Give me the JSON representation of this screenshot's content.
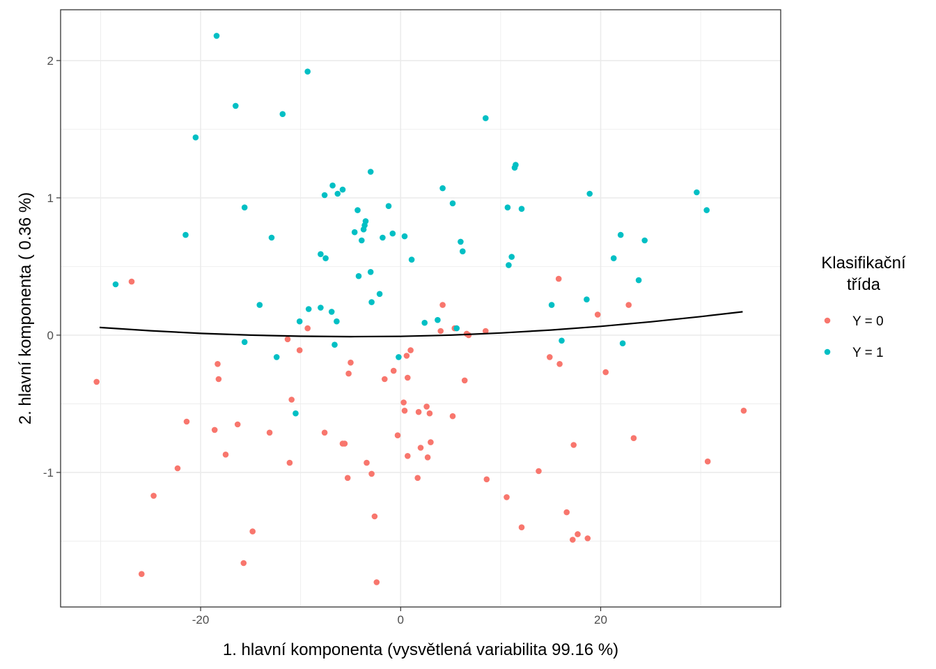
{
  "chart_data": {
    "type": "scatter",
    "title": "",
    "xlabel": "1. hlavní komponenta (vysvětlená variabilita 99.16 %)",
    "ylabel": "2. hlavní komponenta ( 0.36 %)",
    "xlim": [
      -34,
      38
    ],
    "ylim": [
      -1.98,
      2.37
    ],
    "x_ticks": [
      -20,
      0,
      20
    ],
    "x_tick_labels": [
      "-20",
      "0",
      "20"
    ],
    "y_ticks": [
      -1,
      0,
      1,
      2
    ],
    "y_tick_labels": [
      "-1",
      "0",
      "1",
      "2"
    ],
    "grid": true,
    "legend": {
      "title_lines": [
        "Klasifikační",
        "třída"
      ],
      "placement": "right",
      "entries": [
        {
          "label": "Y = 0",
          "color": "#F8766D"
        },
        {
          "label": "Y = 1",
          "color": "#00BFC4"
        }
      ]
    },
    "series": [
      {
        "name": "Y = 0",
        "color": "#F8766D",
        "points": [
          [
            -30.4,
            -0.34
          ],
          [
            -26.9,
            0.39
          ],
          [
            -25.9,
            -1.74
          ],
          [
            -24.7,
            -1.17
          ],
          [
            -22.3,
            -0.97
          ],
          [
            -21.4,
            -0.63
          ],
          [
            -18.6,
            -0.69
          ],
          [
            -18.3,
            -0.21
          ],
          [
            -18.2,
            -0.32
          ],
          [
            -17.5,
            -0.87
          ],
          [
            -16.3,
            -0.65
          ],
          [
            -15.7,
            -1.66
          ],
          [
            -14.8,
            -1.43
          ],
          [
            -13.1,
            -0.71
          ],
          [
            -11.3,
            -0.03
          ],
          [
            -11.1,
            -0.93
          ],
          [
            -10.9,
            -0.47
          ],
          [
            -10.1,
            -0.11
          ],
          [
            -9.3,
            0.05
          ],
          [
            -7.6,
            -0.71
          ],
          [
            -5.8,
            -0.79
          ],
          [
            -5.6,
            -0.79
          ],
          [
            -5.3,
            -1.04
          ],
          [
            -5.2,
            -0.28
          ],
          [
            -5.0,
            -0.2
          ],
          [
            -3.4,
            -0.93
          ],
          [
            -2.9,
            -1.01
          ],
          [
            -2.6,
            -1.32
          ],
          [
            -2.4,
            -1.8
          ],
          [
            -1.6,
            -0.32
          ],
          [
            -0.7,
            -0.26
          ],
          [
            -0.3,
            -0.73
          ],
          [
            0.3,
            -0.49
          ],
          [
            0.4,
            -0.55
          ],
          [
            0.6,
            -0.15
          ],
          [
            0.7,
            -0.31
          ],
          [
            0.7,
            -0.88
          ],
          [
            1.0,
            -0.11
          ],
          [
            1.7,
            -1.04
          ],
          [
            1.8,
            -0.56
          ],
          [
            2.0,
            -0.82
          ],
          [
            2.6,
            -0.52
          ],
          [
            2.7,
            -0.89
          ],
          [
            2.9,
            -0.57
          ],
          [
            3.0,
            -0.78
          ],
          [
            4.0,
            0.03
          ],
          [
            4.2,
            0.22
          ],
          [
            5.2,
            -0.59
          ],
          [
            5.4,
            0.05
          ],
          [
            6.4,
            -0.33
          ],
          [
            6.6,
            0.01
          ],
          [
            6.8,
            0.0
          ],
          [
            8.5,
            0.03
          ],
          [
            8.6,
            -1.05
          ],
          [
            10.6,
            -1.18
          ],
          [
            12.1,
            -1.4
          ],
          [
            13.8,
            -0.99
          ],
          [
            14.9,
            -0.16
          ],
          [
            15.8,
            0.41
          ],
          [
            15.9,
            -0.21
          ],
          [
            16.6,
            -1.29
          ],
          [
            17.2,
            -1.49
          ],
          [
            17.3,
            -0.8
          ],
          [
            17.7,
            -1.45
          ],
          [
            18.7,
            -1.48
          ],
          [
            19.7,
            0.15
          ],
          [
            20.5,
            -0.27
          ],
          [
            22.8,
            0.22
          ],
          [
            23.3,
            -0.75
          ],
          [
            30.7,
            -0.92
          ],
          [
            34.3,
            -0.55
          ]
        ]
      },
      {
        "name": "Y = 1",
        "color": "#00BFC4",
        "points": [
          [
            -28.5,
            0.37
          ],
          [
            -21.5,
            0.73
          ],
          [
            -20.5,
            1.44
          ],
          [
            -18.4,
            2.18
          ],
          [
            -16.5,
            1.67
          ],
          [
            -15.6,
            0.93
          ],
          [
            -15.6,
            -0.05
          ],
          [
            -14.1,
            0.22
          ],
          [
            -12.9,
            0.71
          ],
          [
            -12.4,
            -0.16
          ],
          [
            -11.8,
            1.61
          ],
          [
            -10.5,
            -0.57
          ],
          [
            -10.1,
            0.1
          ],
          [
            -9.3,
            1.92
          ],
          [
            -9.2,
            0.19
          ],
          [
            -8.0,
            0.2
          ],
          [
            -8.0,
            0.59
          ],
          [
            -7.6,
            1.02
          ],
          [
            -7.5,
            0.56
          ],
          [
            -6.9,
            0.17
          ],
          [
            -6.8,
            1.09
          ],
          [
            -6.6,
            -0.07
          ],
          [
            -6.4,
            0.1
          ],
          [
            -6.3,
            1.03
          ],
          [
            -5.8,
            1.06
          ],
          [
            -4.6,
            0.75
          ],
          [
            -4.3,
            0.91
          ],
          [
            -4.2,
            0.43
          ],
          [
            -3.9,
            0.69
          ],
          [
            -3.7,
            0.77
          ],
          [
            -3.6,
            0.8
          ],
          [
            -3.5,
            0.83
          ],
          [
            -3.0,
            0.46
          ],
          [
            -3.0,
            1.19
          ],
          [
            -2.9,
            0.24
          ],
          [
            -2.1,
            0.3
          ],
          [
            -1.8,
            0.71
          ],
          [
            -1.2,
            0.94
          ],
          [
            -0.8,
            0.74
          ],
          [
            -0.2,
            -0.16
          ],
          [
            0.4,
            0.72
          ],
          [
            1.1,
            0.55
          ],
          [
            2.4,
            0.09
          ],
          [
            3.7,
            0.11
          ],
          [
            4.2,
            1.07
          ],
          [
            5.2,
            0.96
          ],
          [
            5.6,
            0.05
          ],
          [
            6.0,
            0.68
          ],
          [
            6.2,
            0.61
          ],
          [
            8.5,
            1.58
          ],
          [
            10.7,
            0.93
          ],
          [
            10.8,
            0.51
          ],
          [
            11.1,
            0.57
          ],
          [
            11.4,
            1.22
          ],
          [
            11.5,
            1.24
          ],
          [
            12.1,
            0.92
          ],
          [
            15.1,
            0.22
          ],
          [
            16.1,
            -0.04
          ],
          [
            18.6,
            0.26
          ],
          [
            18.9,
            1.03
          ],
          [
            21.3,
            0.56
          ],
          [
            22.0,
            0.73
          ],
          [
            22.2,
            -0.06
          ],
          [
            23.8,
            0.4
          ],
          [
            24.4,
            0.69
          ],
          [
            29.6,
            1.04
          ],
          [
            30.6,
            0.91
          ]
        ]
      },
      {
        "name": "",
        "color": "#000000",
        "line": true,
        "points": [
          [
            -30.1,
            0.056
          ],
          [
            -25,
            0.032
          ],
          [
            -20,
            0.013
          ],
          [
            -15,
            0.0
          ],
          [
            -10,
            -0.008
          ],
          [
            -5,
            -0.011
          ],
          [
            0,
            -0.009
          ],
          [
            5,
            0.0
          ],
          [
            10,
            0.016
          ],
          [
            15,
            0.037
          ],
          [
            20,
            0.064
          ],
          [
            25,
            0.097
          ],
          [
            30,
            0.135
          ],
          [
            34.2,
            0.17
          ]
        ]
      }
    ]
  }
}
